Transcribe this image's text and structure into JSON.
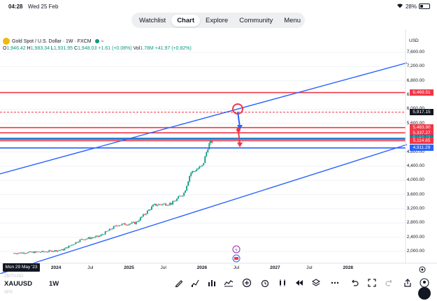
{
  "status_bar": {
    "time": "04:28",
    "date": "Wed 25 Feb",
    "battery": "28%",
    "battery_level": 0.28
  },
  "nav": {
    "tabs": [
      {
        "label": "Watchlist"
      },
      {
        "label": "Chart"
      },
      {
        "label": "Explore"
      },
      {
        "label": "Community"
      },
      {
        "label": "Menu"
      }
    ],
    "active": "Chart"
  },
  "legend": {
    "title": "Gold Spot / U.S. Dollar · 1W · FXCM",
    "o_label": "O",
    "o": "1,946.42",
    "h_label": "H",
    "h": "1,983.34",
    "l_label": "L",
    "l": "1,931.95",
    "c_label": "C",
    "c": "1,948.03",
    "change": "+1.61 (+0.08%)",
    "vol_label": "Vol",
    "vol": "1.78M",
    "vol_change": "+41.97 (+0.82%)"
  },
  "price_axis": {
    "currency": "USD",
    "labels": [
      "7,600.00",
      "7,200.00",
      "6,800.00",
      "6,400.00",
      "6,000.00",
      "5,600.00",
      "4,800.00",
      "4,400.00",
      "4,000.00",
      "3,600.00",
      "3,200.00",
      "2,800.00",
      "2,400.00",
      "2,000.00"
    ]
  },
  "price_tags": [
    {
      "value": "6,469.51",
      "color": "#f23645"
    },
    {
      "value": "5,917.15",
      "color": "#131722"
    },
    {
      "value": "5,483.90",
      "color": "#f23645"
    },
    {
      "value": "5,337.27",
      "color": "#f23645"
    },
    {
      "value": "5,183.40",
      "color": "#2962ff"
    },
    {
      "value": "5,156.46",
      "color": "#089981"
    },
    {
      "value": "5,114.85",
      "color": "#f23645"
    },
    {
      "value": "4,911.29",
      "color": "#2962ff"
    }
  ],
  "time_axis": {
    "labels": [
      "2024",
      "Jul",
      "2025",
      "Jul",
      "2026",
      "Jul",
      "2027",
      "Jul",
      "2028"
    ],
    "bold": [
      "2024",
      "2025",
      "2026",
      "2027",
      "2028"
    ],
    "cursor_date": "Mon 29 May '23"
  },
  "chart_data": {
    "type": "candlestick",
    "symbol": "XAUUSD",
    "interval": "1W",
    "y_range": [
      1800,
      7800
    ],
    "x_range": [
      "2023-05",
      "2028-02"
    ],
    "closes_approx": [
      {
        "date": "2023-05",
        "value": 1948
      },
      {
        "date": "2023-10",
        "value": 1990
      },
      {
        "date": "2024-01",
        "value": 2040
      },
      {
        "date": "2024-04",
        "value": 2330
      },
      {
        "date": "2024-07",
        "value": 2420
      },
      {
        "date": "2024-10",
        "value": 2740
      },
      {
        "date": "2025-01",
        "value": 2800
      },
      {
        "date": "2025-04",
        "value": 3300
      },
      {
        "date": "2025-07",
        "value": 3350
      },
      {
        "date": "2025-09",
        "value": 3650
      },
      {
        "date": "2025-10",
        "value": 4200
      },
      {
        "date": "2025-12",
        "value": 4400
      },
      {
        "date": "2026-01",
        "value": 5000
      },
      {
        "date": "2026-02",
        "value": 5156
      }
    ],
    "horizontal_levels": [
      6469.51,
      5917.15,
      5483.9,
      5337.27,
      5183.4,
      5114.85,
      4911.29
    ],
    "channel_lines": [
      "upper",
      "lower"
    ],
    "colors": {
      "up": "#089981",
      "down": "#f23645",
      "channel": "#2962ff",
      "level": "#f23645"
    }
  },
  "bottom_bar": {
    "symbol": "XAUUSD",
    "interval": "1W",
    "tools": [
      "pen-icon",
      "indicators-icon",
      "chart-type-icon",
      "drawing-icon",
      "add-icon",
      "alert-icon",
      "replay-bars-icon",
      "rewind-icon",
      "layers-icon",
      "more-icon",
      "undo-icon",
      "fullscreen-icon",
      "redo-icon",
      "share-icon",
      "profile-icon"
    ]
  }
}
